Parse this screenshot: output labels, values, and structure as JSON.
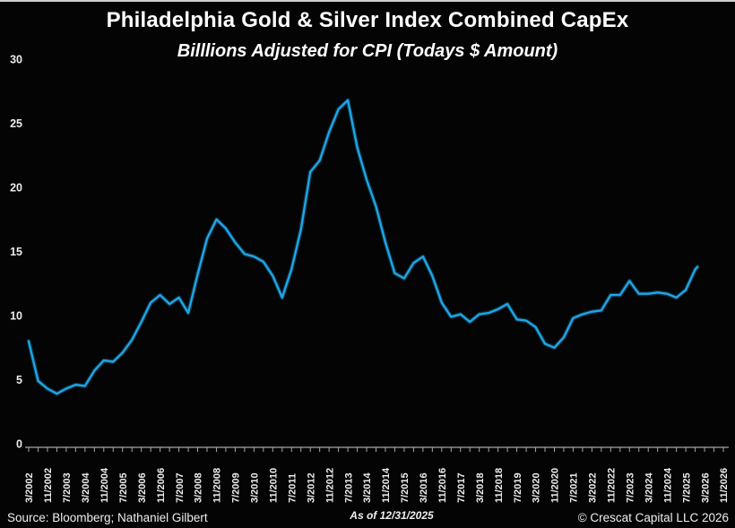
{
  "page": {
    "title": "Philadelphia Gold & Silver Index Combined CapEx",
    "subtitle": "Billlions Adjusted for CPI (Todays $ Amount)",
    "footer": {
      "source": "Source: Bloomberg; Nathaniel Gilbert",
      "as_of": "As of 12/31/2025",
      "copyright": "© Crescat Capital LLC 2026"
    },
    "colors": {
      "background": "#040404",
      "line": "#1FA6E6",
      "axis": "#A8A8A8",
      "tick_label": "#EDEDED",
      "title_text": "#FFFFFF",
      "top_border": "#CFCFCF"
    }
  },
  "chart_data": {
    "type": "line",
    "title": "Philadelphia Gold & Silver Index Combined CapEx",
    "subtitle": "Billlions Adjusted for CPI (Todays $ Amount)",
    "xlabel": "",
    "ylabel": "",
    "grid": false,
    "legend": "none",
    "line_color": "#1FA6E6",
    "ylim": [
      0,
      30
    ],
    "y_ticks": [
      0,
      5,
      10,
      15,
      20,
      25,
      30
    ],
    "x_tick_labels": [
      "3/2002",
      "11/2002",
      "7/2003",
      "3/2004",
      "11/2004",
      "7/2005",
      "3/2006",
      "11/2006",
      "7/2007",
      "3/2008",
      "11/2008",
      "7/2009",
      "3/2010",
      "11/2010",
      "7/2011",
      "3/2012",
      "11/2012",
      "7/2013",
      "3/2014",
      "11/2014",
      "7/2015",
      "3/2016",
      "11/2016",
      "7/2017",
      "3/2018",
      "11/2018",
      "7/2019",
      "3/2020",
      "11/2020",
      "7/2021",
      "3/2022",
      "11/2022",
      "7/2023",
      "3/2024",
      "11/2024",
      "7/2025",
      "3/2026",
      "11/2026"
    ],
    "x": [
      "3/2002",
      "7/2002",
      "11/2002",
      "3/2003",
      "7/2003",
      "11/2003",
      "3/2004",
      "7/2004",
      "11/2004",
      "3/2005",
      "7/2005",
      "11/2005",
      "3/2006",
      "7/2006",
      "11/2006",
      "3/2007",
      "7/2007",
      "11/2007",
      "3/2008",
      "7/2008",
      "11/2008",
      "3/2009",
      "7/2009",
      "11/2009",
      "3/2010",
      "7/2010",
      "11/2010",
      "3/2011",
      "7/2011",
      "11/2011",
      "3/2012",
      "7/2012",
      "11/2012",
      "3/2013",
      "7/2013",
      "11/2013",
      "3/2014",
      "7/2014",
      "11/2014",
      "3/2015",
      "7/2015",
      "11/2015",
      "3/2016",
      "7/2016",
      "11/2016",
      "3/2017",
      "7/2017",
      "11/2017",
      "3/2018",
      "7/2018",
      "11/2018",
      "3/2019",
      "7/2019",
      "11/2019",
      "3/2020",
      "7/2020",
      "11/2020",
      "3/2021",
      "7/2021",
      "11/2021",
      "3/2022",
      "7/2022",
      "11/2022",
      "3/2023",
      "7/2023",
      "11/2023",
      "3/2024",
      "7/2024",
      "11/2024",
      "3/2025",
      "7/2025",
      "11/2025",
      "12/2025"
    ],
    "values": [
      8.0,
      4.9,
      4.3,
      3.9,
      4.3,
      4.6,
      4.5,
      5.7,
      6.5,
      6.4,
      7.1,
      8.1,
      9.5,
      11.0,
      11.6,
      10.9,
      11.4,
      10.2,
      13.2,
      16.0,
      17.5,
      16.8,
      15.7,
      14.8,
      14.6,
      14.2,
      13.1,
      11.4,
      13.6,
      16.7,
      21.2,
      22.1,
      24.3,
      26.1,
      26.8,
      23.1,
      20.6,
      18.5,
      15.7,
      13.3,
      12.9,
      14.1,
      14.6,
      13.1,
      11.0,
      9.9,
      10.1,
      9.5,
      10.1,
      10.2,
      10.5,
      10.9,
      9.7,
      9.6,
      9.1,
      7.8,
      7.5,
      8.3,
      9.8,
      10.1,
      10.3,
      10.4,
      11.6,
      11.6,
      12.7,
      11.7,
      11.7,
      11.8,
      11.7,
      11.4,
      12.0,
      13.6,
      13.8
    ]
  }
}
